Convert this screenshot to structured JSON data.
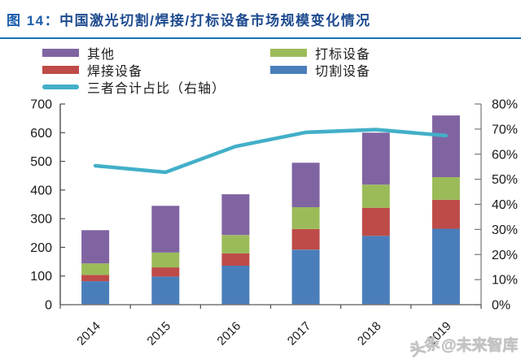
{
  "header": {
    "figure_label": "图 14：",
    "title": "中国激光切割/焊接/打标设备市场规模变化情况"
  },
  "watermark": {
    "prefix": "头条",
    "suffix": "@未来智库"
  },
  "colors": {
    "title_blue": "#1a5dad",
    "rule_blue": "#1673b9",
    "cutting_blue": "#4a7ebb",
    "welding_red": "#be4b48",
    "marking_green": "#9bbb59",
    "others_purple": "#8064a2",
    "share_teal": "#42afc8",
    "axis_dark": "#4d4d4d",
    "axis_gray": "#767676"
  },
  "chart_data": {
    "type": "bar",
    "subtype": "stacked-bars-with-secondary-axis-line",
    "title": "中国激光切割/焊接/打标设备市场规模变化情况",
    "categories": [
      "2014",
      "2015",
      "2016",
      "2017",
      "2018",
      "2019"
    ],
    "series": [
      {
        "name": "切割设备",
        "type": "bar",
        "color": "#4a7ebb",
        "values": [
          82,
          98,
          136,
          192,
          240,
          265
        ]
      },
      {
        "name": "焊接设备",
        "type": "bar",
        "color": "#be4b48",
        "values": [
          22,
          32,
          43,
          72,
          98,
          101
        ]
      },
      {
        "name": "打标设备",
        "type": "bar",
        "color": "#9bbb59",
        "values": [
          40,
          52,
          64,
          76,
          81,
          79
        ]
      },
      {
        "name": "其他",
        "type": "bar",
        "color": "#8064a2",
        "values": [
          116,
          163,
          142,
          155,
          181,
          215
        ]
      },
      {
        "name": "三者合计占比（右轴）",
        "type": "line",
        "axis": "right",
        "color": "#42afc8",
        "values": [
          55.4,
          52.8,
          63.1,
          68.7,
          69.8,
          67.4
        ]
      }
    ],
    "stacked_totals": [
      260,
      345,
      385,
      495,
      600,
      660
    ],
    "left_axis": {
      "range": [
        0,
        700
      ],
      "ticks": [
        "0",
        "100",
        "200",
        "300",
        "400",
        "500",
        "600",
        "700"
      ]
    },
    "right_axis": {
      "range": [
        0,
        80
      ],
      "ticks": [
        "0%",
        "10%",
        "20%",
        "30%",
        "40%",
        "50%",
        "60%",
        "70%",
        "80%"
      ]
    },
    "grid": false,
    "legend_position": "top, two columns",
    "x_label_rotation_deg": -45
  }
}
